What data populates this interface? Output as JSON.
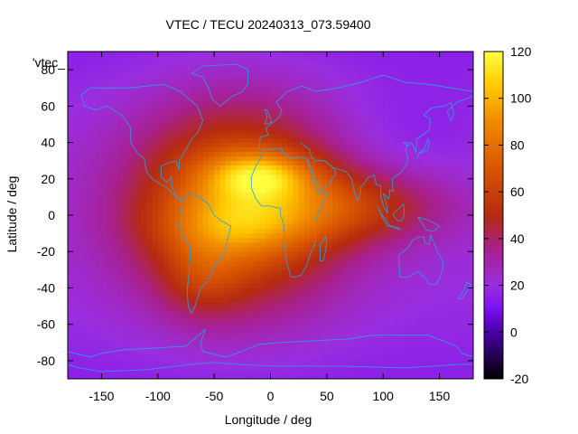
{
  "chart_data": {
    "type": "heatmap",
    "title": "VTEC / TECU 20240313_073.59400",
    "xlabel": "Longitude / deg",
    "ylabel": "Latitude / deg",
    "xlim": [
      -180,
      180
    ],
    "ylim": [
      -90,
      90
    ],
    "x_ticks": [
      -150,
      -100,
      -50,
      0,
      50,
      100,
      150
    ],
    "y_ticks": [
      -80,
      -60,
      -40,
      -20,
      0,
      20,
      40,
      60,
      80
    ],
    "colorbar": {
      "range": [
        -20,
        120
      ],
      "ticks": [
        -20,
        0,
        20,
        40,
        60,
        80,
        100,
        120
      ]
    },
    "series_label": "'vtec_",
    "colormap_stops": [
      {
        "value": -20,
        "color": "#000000"
      },
      {
        "value": 0,
        "color": "#4a00a8"
      },
      {
        "value": 10,
        "color": "#7a10f0"
      },
      {
        "value": 20,
        "color": "#9a2ee0"
      },
      {
        "value": 35,
        "color": "#a8208f"
      },
      {
        "value": 50,
        "color": "#b52a10"
      },
      {
        "value": 70,
        "color": "#d85600"
      },
      {
        "value": 90,
        "color": "#f08a00"
      },
      {
        "value": 105,
        "color": "#ffc800"
      },
      {
        "value": 120,
        "color": "#ffff40"
      }
    ],
    "background_vtec": 15,
    "enhancements": [
      {
        "lon": -30,
        "lat": 5,
        "lon_sigma": 65,
        "lat_sigma": 38,
        "amplitude": 60
      },
      {
        "lon": -10,
        "lat": 22,
        "lon_sigma": 32,
        "lat_sigma": 9,
        "amplitude": 42
      },
      {
        "lon": -30,
        "lat": -5,
        "lon_sigma": 45,
        "lat_sigma": 12,
        "amplitude": 22
      },
      {
        "lon": 70,
        "lat": 5,
        "lon_sigma": 60,
        "lat_sigma": 14,
        "amplitude": 30
      },
      {
        "lon": -60,
        "lat": -35,
        "lon_sigma": 25,
        "lat_sigma": 15,
        "amplitude": 15
      }
    ]
  }
}
